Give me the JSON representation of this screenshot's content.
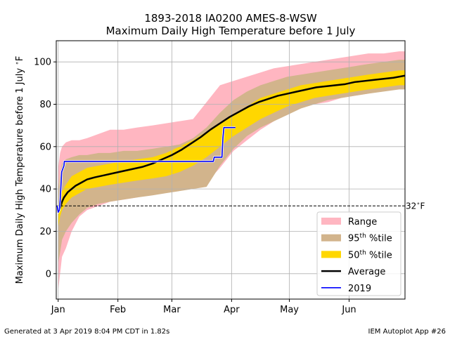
{
  "chart_data": {
    "type": "area",
    "title": "1893-2018 IA0200 AMES-8-WSW",
    "subtitle": "Maximum Daily High Temperature before 1 July",
    "xlabel": "",
    "ylabel": "Maximum Daily High Temperature before 1 July ∘F",
    "ylabel_parts": {
      "main": "Maximum Daily High Temperature before 1 July ",
      "sup": "∘",
      "unit": "F"
    },
    "ylim": [
      -12,
      110
    ],
    "xlim": [
      0,
      181
    ],
    "yticks": [
      0,
      20,
      40,
      60,
      80,
      100
    ],
    "xticks": [
      {
        "day": 1,
        "label": "Jan"
      },
      {
        "day": 32,
        "label": "Feb"
      },
      {
        "day": 60,
        "label": "Mar"
      },
      {
        "day": 91,
        "label": "Apr"
      },
      {
        "day": 121,
        "label": "May"
      },
      {
        "day": 152,
        "label": "Jun"
      }
    ],
    "grid": true,
    "legend_position": "lower-right",
    "threshold": {
      "value": 32,
      "label": "32",
      "sup": "∘",
      "unit": "F"
    },
    "x_points": [
      1,
      2,
      3,
      5,
      8,
      12,
      16,
      22,
      28,
      35,
      42,
      50,
      57,
      64,
      71,
      78,
      85,
      92,
      99,
      106,
      113,
      120,
      127,
      134,
      141,
      148,
      155,
      162,
      170,
      178,
      181
    ],
    "range": {
      "low": [
        -8,
        0,
        8,
        12,
        20,
        27,
        30,
        32,
        34,
        35,
        36,
        38,
        39,
        40,
        41,
        43,
        50,
        58,
        63,
        68,
        72,
        76,
        79,
        80,
        81,
        83,
        84,
        85,
        87,
        88,
        88
      ],
      "high": [
        50,
        57,
        60,
        62,
        63,
        63,
        64,
        66,
        68,
        68,
        69,
        70,
        71,
        72,
        73,
        81,
        89,
        91,
        93,
        95,
        97,
        98,
        99,
        100,
        101,
        102,
        103,
        104,
        104,
        105,
        105
      ]
    },
    "p95": {
      "low": [
        5,
        10,
        16,
        20,
        24,
        28,
        31,
        33,
        34,
        35,
        36,
        37,
        38,
        39,
        40,
        41,
        51,
        59,
        65,
        69,
        72,
        75,
        78,
        80,
        82,
        83,
        84,
        85,
        86,
        87,
        87
      ],
      "high": [
        40,
        47,
        52,
        54,
        55,
        56,
        56,
        57,
        57,
        58,
        58,
        59,
        60,
        61,
        64,
        69,
        76,
        82,
        86,
        89,
        91,
        93,
        94,
        95,
        96,
        97,
        98,
        99,
        100,
        101,
        101
      ]
    },
    "p50": {
      "low": [
        22,
        27,
        30,
        33,
        36,
        38,
        40,
        41,
        42,
        43,
        44,
        45,
        46,
        48,
        51,
        55,
        60,
        65,
        69,
        73,
        76,
        79,
        81,
        83,
        84,
        85,
        86,
        87,
        88,
        89,
        89
      ],
      "high": [
        32,
        36,
        39,
        42,
        46,
        48,
        50,
        51,
        52,
        53,
        54,
        55,
        57,
        60,
        63,
        67,
        71,
        75,
        79,
        83,
        85,
        87,
        89,
        90,
        91,
        92,
        93,
        94,
        95,
        96,
        96
      ]
    },
    "series": [
      {
        "name": "Average",
        "color": "#000000",
        "x": [
          1,
          2,
          3,
          4,
          6,
          8,
          10,
          13,
          16,
          20,
          25,
          30,
          35,
          40,
          45,
          50,
          55,
          60,
          65,
          70,
          75,
          80,
          85,
          90,
          95,
          100,
          105,
          110,
          115,
          120,
          125,
          130,
          135,
          140,
          145,
          150,
          155,
          160,
          165,
          170,
          175,
          181
        ],
        "values": [
          29,
          31,
          34,
          36,
          38.5,
          40,
          41.5,
          43,
          44.5,
          45.5,
          46.5,
          47.5,
          48.5,
          49.5,
          50.5,
          52,
          54,
          56,
          58.5,
          61.5,
          64.5,
          68,
          71,
          74,
          76.5,
          79,
          81,
          82.5,
          84,
          85,
          86,
          87,
          88,
          88.5,
          89,
          89.5,
          90.5,
          91,
          91.5,
          92,
          92.5,
          93.5
        ]
      },
      {
        "name": "2019",
        "color": "#0000ff",
        "x": [
          0.5,
          1,
          1.6,
          2,
          2.8,
          4,
          4.2,
          5,
          10,
          20,
          40,
          60,
          80,
          81.5,
          82,
          84,
          86,
          86.5,
          87,
          88,
          91,
          93
        ],
        "values": [
          32,
          29,
          30,
          34,
          48,
          51,
          53,
          53,
          53,
          53,
          53,
          53,
          53,
          53,
          55,
          55,
          55,
          64,
          69,
          69,
          69,
          69
        ]
      }
    ],
    "legend": [
      {
        "label": "Range",
        "sup": "",
        "suffix": "",
        "color": "#ffb6c1",
        "kind": "patch"
      },
      {
        "label": "95",
        "sup": "th",
        "suffix": " %tile",
        "color": "#d2b48c",
        "kind": "patch"
      },
      {
        "label": "50",
        "sup": "th",
        "suffix": " %tile",
        "color": "#ffd700",
        "kind": "patch"
      },
      {
        "label": "Average",
        "sup": "",
        "suffix": "",
        "color": "#000000",
        "kind": "line"
      },
      {
        "label": "2019",
        "sup": "",
        "suffix": "",
        "color": "#0000ff",
        "kind": "line"
      }
    ]
  },
  "footer": {
    "left": "Generated at 3 Apr 2019 8:04 PM CDT in 1.82s",
    "right": "IEM Autoplot App #26"
  }
}
